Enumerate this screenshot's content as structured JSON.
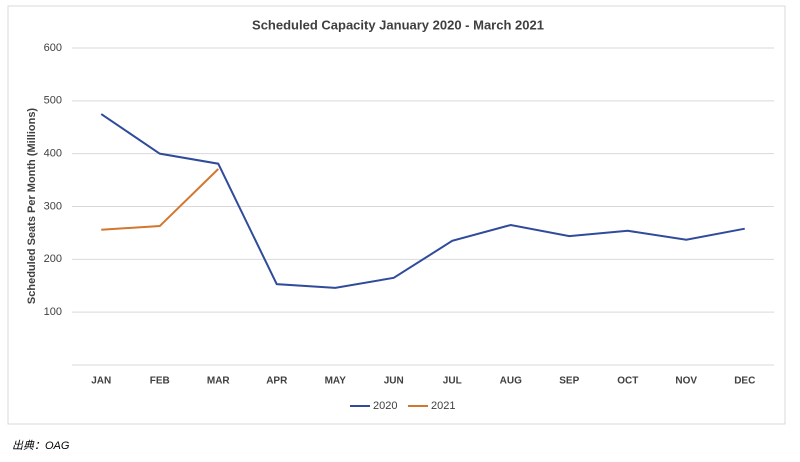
{
  "chart_data": {
    "type": "line",
    "title": "Scheduled Capacity January 2020 - March 2021",
    "y_label": "Scheduled Seats Per Month (Millions)",
    "categories": [
      "JAN",
      "FEB",
      "MAR",
      "APR",
      "MAY",
      "JUN",
      "JUL",
      "AUG",
      "SEP",
      "OCT",
      "NOV",
      "DEC"
    ],
    "series": [
      {
        "name": "2020",
        "color": "#2f4b9a",
        "values": [
          475,
          400,
          381,
          153,
          146,
          165,
          235,
          265,
          244,
          254,
          237,
          258
        ]
      },
      {
        "name": "2021",
        "color": "#d2772f",
        "values": [
          256,
          263,
          371,
          null,
          null,
          null,
          null,
          null,
          null,
          null,
          null,
          null
        ]
      }
    ],
    "ylim": [
      0,
      600
    ],
    "yticks": [
      100,
      200,
      300,
      400,
      500,
      600
    ],
    "grid": true,
    "legend": "bottom"
  },
  "source": "出典：OAG"
}
